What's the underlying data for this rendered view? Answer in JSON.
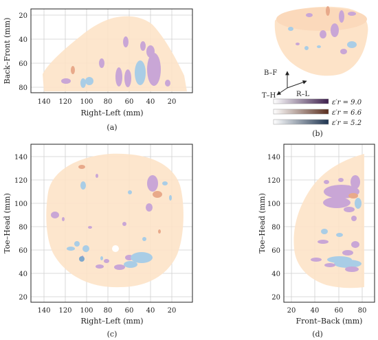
{
  "panels": {
    "a": {
      "caption": "(a)",
      "xlabel": "Right–Left (mm)",
      "ylabel": "Back–Front (mm)",
      "xticks": [
        "140",
        "120",
        "100",
        "80",
        "60",
        "40",
        "20"
      ],
      "yticks": [
        "20",
        "40",
        "60",
        "80"
      ]
    },
    "b": {
      "caption": "(b)",
      "axes": {
        "up": "B–F",
        "side": "T–H",
        "right": "R–L"
      },
      "legend": [
        {
          "label": "ε′r = 9.0",
          "color": "#3d1f4d"
        },
        {
          "label": "ε′r = 6.6",
          "color": "#5a2e1e"
        },
        {
          "label": "ε′r = 5.2",
          "color": "#1f3550"
        }
      ]
    },
    "c": {
      "caption": "(c)",
      "xlabel": "Right–Left (mm)",
      "ylabel": "Toe–Head (mm)",
      "xticks": [
        "140",
        "120",
        "100",
        "80",
        "60",
        "40",
        "20"
      ],
      "yticks": [
        "140",
        "120",
        "100",
        "80",
        "60",
        "40",
        "20"
      ]
    },
    "d": {
      "caption": "(d)",
      "xlabel": "Front–Back (mm)",
      "ylabel": "Toe–Head (mm)",
      "xticks": [
        "20",
        "40",
        "60",
        "80"
      ],
      "yticks": [
        "140",
        "120",
        "100",
        "80",
        "60",
        "40",
        "20"
      ]
    }
  },
  "colors": {
    "tissue": "#fde3c8",
    "purple": "#c9a6d6",
    "orange": "#e8a98a",
    "blue": "#a9cde6",
    "grid": "#bdbdbd"
  }
}
